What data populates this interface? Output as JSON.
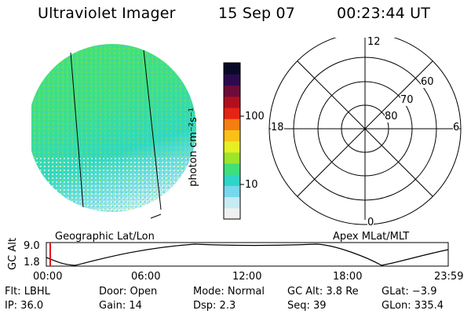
{
  "header": {
    "instrument": "Ultraviolet Imager",
    "date": "15 Sep 07",
    "time": "00:23:44 UT"
  },
  "colorbar": {
    "unit_label": "photon cm⁻²s⁻¹",
    "tick_100": "100",
    "tick_10": "10"
  },
  "panels": {
    "left_caption": "Geographic Lat/Lon",
    "right_caption": "Apex MLat/MLT"
  },
  "polar": {
    "mlt_12": "12",
    "mlt_18": "18",
    "mlt_6": "6",
    "mlt_0": "0",
    "lat_60": "60",
    "lat_70": "70",
    "lat_80": "80"
  },
  "timeline": {
    "y_axis": "GC Alt",
    "y_max": "9.0",
    "y_min": "1.8",
    "ticks": [
      "00:00",
      "06:00",
      "12:00",
      "18:00",
      "23:59"
    ],
    "marker_time": "00:23:44"
  },
  "info": {
    "flt": "Flt: LBHL",
    "door": "Door: Open",
    "mode": "Mode: Normal",
    "gc_alt": "GC Alt: 3.8 Re",
    "glat": "GLat:  −3.9",
    "ip": "IP: 36.0",
    "gain": "Gain: 14",
    "dsp": "Dsp:     2.3",
    "seq": "Seq: 39",
    "glon": "GLon: 335.4"
  },
  "colors": {
    "scale": [
      "#f0f0f0",
      "#c8eaf2",
      "#76d8ec",
      "#2ed6c8",
      "#3fe07a",
      "#9ce52a",
      "#e6ef22",
      "#fbc016",
      "#f57e10",
      "#e52414",
      "#b0101e",
      "#6c0c3a",
      "#2c0a4e",
      "#0a0a28"
    ],
    "marker": "#e0141c"
  }
}
